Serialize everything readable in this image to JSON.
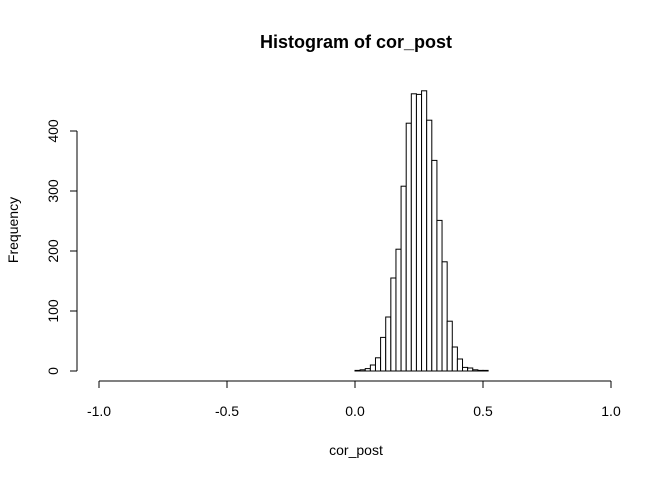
{
  "chart_data": {
    "type": "bar",
    "title": "Histogram of cor_post",
    "xlabel": "cor_post",
    "ylabel": "Frequency",
    "xlim": [
      -1.0,
      1.0
    ],
    "ylim": [
      0,
      470
    ],
    "x_ticks": [
      -1.0,
      -0.5,
      0.0,
      0.5,
      1.0
    ],
    "x_tick_labels": [
      "-1.0",
      "-0.5",
      "0.0",
      "0.5",
      "1.0"
    ],
    "y_ticks": [
      0,
      100,
      200,
      300,
      400
    ],
    "y_tick_labels": [
      "0",
      "100",
      "200",
      "300",
      "400"
    ],
    "grid": false,
    "legend": "none",
    "bin_width": 0.02,
    "bin_start": -1.0,
    "values": [
      0,
      0,
      0,
      0,
      0,
      0,
      0,
      0,
      0,
      0,
      0,
      0,
      0,
      0,
      0,
      0,
      0,
      0,
      0,
      0,
      0,
      0,
      0,
      0,
      0,
      0,
      0,
      0,
      0,
      0,
      0,
      0,
      0,
      0,
      0,
      0,
      0,
      0,
      0,
      0,
      0,
      0,
      0,
      0,
      0,
      0,
      0,
      0,
      0,
      0,
      1,
      2,
      4,
      10,
      22,
      56,
      90,
      155,
      203,
      308,
      413,
      462,
      461,
      467,
      418,
      351,
      251,
      182,
      83,
      40,
      20,
      6,
      5,
      2,
      1,
      1,
      0,
      0,
      0,
      0,
      0,
      0,
      0,
      0,
      0,
      0,
      0,
      0,
      0,
      0,
      0,
      0,
      0,
      0,
      0,
      0,
      0,
      0,
      0,
      0
    ]
  }
}
